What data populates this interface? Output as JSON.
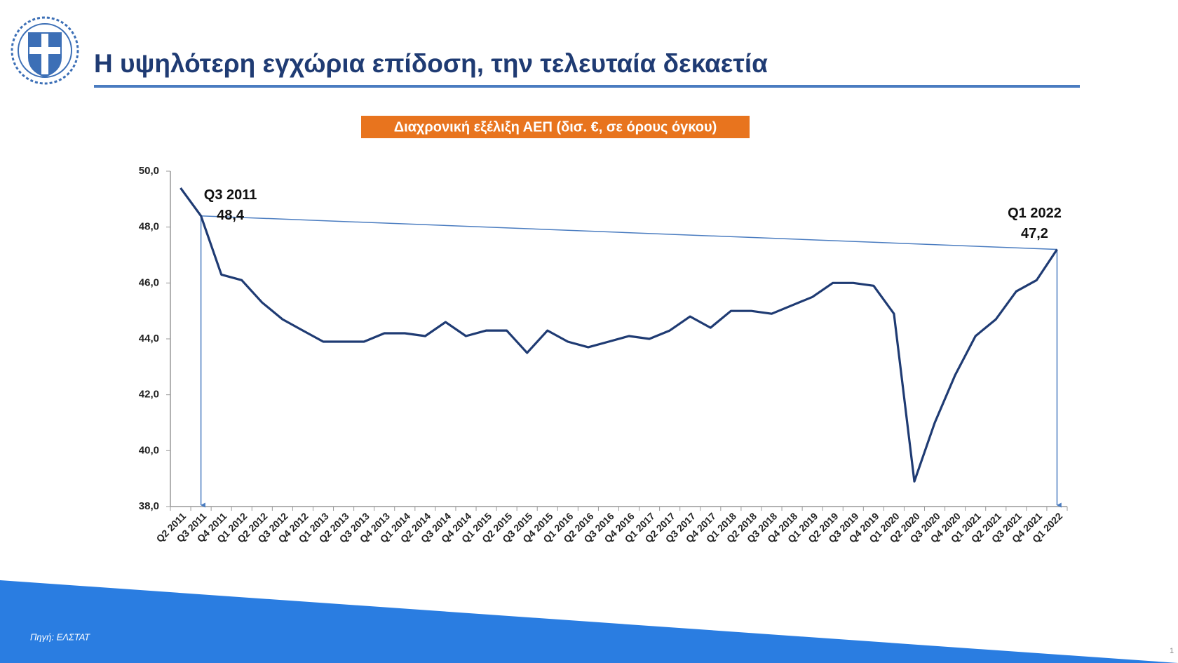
{
  "header": {
    "title": "Η υψηλότερη εγχώρια επίδοση, την τελευταία δεκαετία"
  },
  "footer": {
    "source": "Πηγή: ΕΛΣΤΑΤ",
    "page_number": 1
  },
  "chart_data": {
    "type": "line",
    "title": "Διαχρονική εξέλιξη ΑΕΠ (δισ. €, σε όρους όγκου)",
    "categories": [
      "Q2 2011",
      "Q3 2011",
      "Q4 2011",
      "Q1 2012",
      "Q2 2012",
      "Q3 2012",
      "Q4 2012",
      "Q1 2013",
      "Q2 2013",
      "Q3 2013",
      "Q4 2013",
      "Q1 2014",
      "Q2 2014",
      "Q3 2014",
      "Q4 2014",
      "Q1 2015",
      "Q2 2015",
      "Q3 2015",
      "Q4 2015",
      "Q1 2016",
      "Q2 2016",
      "Q3 2016",
      "Q4 2016",
      "Q1 2017",
      "Q2 2017",
      "Q3 2017",
      "Q4 2017",
      "Q1 2018",
      "Q2 2018",
      "Q3 2018",
      "Q4 2018",
      "Q1 2019",
      "Q2 2019",
      "Q3 2019",
      "Q4 2019",
      "Q1 2020",
      "Q2 2020",
      "Q3 2020",
      "Q4 2020",
      "Q1 2021",
      "Q2 2021",
      "Q3 2021",
      "Q4 2021",
      "Q1 2022"
    ],
    "series": [
      {
        "name": "ΑΕΠ",
        "color": "#1f3b73",
        "values": [
          49.4,
          48.4,
          46.3,
          46.1,
          45.3,
          44.7,
          44.3,
          43.9,
          43.9,
          43.9,
          44.2,
          44.2,
          44.1,
          44.6,
          44.1,
          44.3,
          44.3,
          43.5,
          44.3,
          43.9,
          43.7,
          43.9,
          44.1,
          44.0,
          44.3,
          44.8,
          44.4,
          45.0,
          45.0,
          44.9,
          45.2,
          45.5,
          46.0,
          46.0,
          45.9,
          44.9,
          38.9,
          41.0,
          42.7,
          44.1,
          44.7,
          45.7,
          46.1,
          47.2
        ],
        "value_labels": [
          null,
          "48,4",
          null,
          null,
          null,
          null,
          null,
          null,
          null,
          null,
          null,
          null,
          null,
          null,
          null,
          null,
          null,
          null,
          null,
          null,
          null,
          null,
          null,
          null,
          null,
          null,
          null,
          null,
          null,
          null,
          null,
          null,
          null,
          null,
          null,
          null,
          null,
          null,
          null,
          null,
          null,
          null,
          null,
          "47,2"
        ],
        "callout_labels": [
          null,
          "Q3 2011",
          null,
          null,
          null,
          null,
          null,
          null,
          null,
          null,
          null,
          null,
          null,
          null,
          null,
          null,
          null,
          null,
          null,
          null,
          null,
          null,
          null,
          null,
          null,
          null,
          null,
          null,
          null,
          null,
          null,
          null,
          null,
          null,
          null,
          null,
          null,
          null,
          null,
          null,
          null,
          null,
          null,
          "Q1 2022"
        ]
      }
    ],
    "ylim": [
      38,
      50
    ],
    "yticks": [
      {
        "value": 38,
        "label": "38,0"
      },
      {
        "value": 40,
        "label": "40,0"
      },
      {
        "value": 42,
        "label": "42,0"
      },
      {
        "value": 44,
        "label": "44,0"
      },
      {
        "value": 46,
        "label": "46,0"
      },
      {
        "value": 48,
        "label": "48,0"
      },
      {
        "value": 50,
        "label": "50,0"
      }
    ],
    "grid": false
  }
}
